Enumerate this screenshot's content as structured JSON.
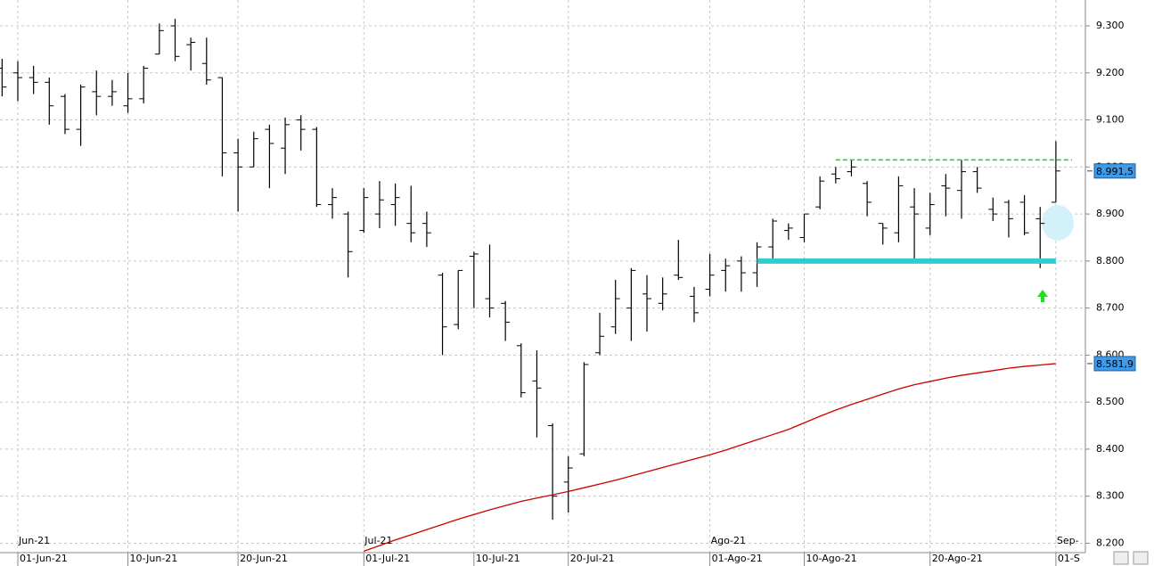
{
  "chart_data": {
    "type": "ohlc",
    "categories": [
      null,
      "01-Jun-21",
      null,
      null,
      null,
      null,
      null,
      null,
      "10-Jun-21",
      null,
      null,
      null,
      null,
      null,
      null,
      "20-Jun-21",
      null,
      null,
      null,
      null,
      null,
      null,
      null,
      "01-Jul-21",
      null,
      null,
      null,
      null,
      null,
      null,
      "10-Jul-21",
      null,
      null,
      null,
      null,
      null,
      "20-Jul-21",
      null,
      null,
      null,
      null,
      null,
      null,
      null,
      null,
      "01-Ago-21",
      null,
      null,
      null,
      null,
      null,
      "10-Ago-21",
      null,
      null,
      null,
      null,
      null,
      null,
      null,
      "20-Ago-21",
      null,
      null,
      null,
      null,
      null,
      null,
      null,
      "01-S"
    ],
    "month_labels": [
      null,
      "Jun-21",
      null,
      null,
      null,
      null,
      null,
      null,
      null,
      null,
      null,
      null,
      null,
      null,
      null,
      null,
      null,
      null,
      null,
      null,
      null,
      null,
      null,
      "Jul-21",
      null,
      null,
      null,
      null,
      null,
      null,
      null,
      null,
      null,
      null,
      null,
      null,
      null,
      null,
      null,
      null,
      null,
      null,
      null,
      null,
      null,
      "Ago-21",
      null,
      null,
      null,
      null,
      null,
      null,
      null,
      null,
      null,
      null,
      null,
      null,
      null,
      null,
      null,
      null,
      null,
      null,
      null,
      null,
      null,
      "Sep-"
    ],
    "open": [
      9210,
      9200,
      9190,
      9180,
      9150,
      9080,
      9160,
      9150,
      9130,
      9145,
      9240,
      9300,
      9260,
      9220,
      9190,
      9030,
      9000,
      9080,
      9040,
      9100,
      9080,
      8920,
      8900,
      8865,
      8900,
      8920,
      8880,
      8880,
      8770,
      8665,
      8810,
      8720,
      8710,
      8620,
      8545,
      8450,
      8330,
      8390,
      8605,
      8660,
      8700,
      8730,
      8710,
      8770,
      8725,
      8740,
      8780,
      8800,
      8775,
      8830,
      8865,
      8850,
      8915,
      8985,
      8990,
      8965,
      8880,
      8860,
      8915,
      8870,
      8960,
      8950,
      8990,
      8910,
      8925,
      8925,
      8890,
      8925
    ],
    "high": [
      9230,
      9225,
      9215,
      9190,
      9155,
      9175,
      9205,
      9185,
      9200,
      9215,
      9305,
      9315,
      9275,
      9275,
      9190,
      9060,
      9075,
      9090,
      9105,
      9110,
      9085,
      8955,
      8905,
      8955,
      8970,
      8965,
      8960,
      8905,
      8775,
      8780,
      8820,
      8835,
      8715,
      8625,
      8610,
      8455,
      8385,
      8585,
      8690,
      8760,
      8785,
      8770,
      8765,
      8845,
      8745,
      8815,
      8805,
      8810,
      8840,
      8890,
      8880,
      8900,
      8980,
      9000,
      9015,
      8970,
      8880,
      8980,
      8955,
      8945,
      8985,
      9015,
      9000,
      8935,
      8930,
      8940,
      8915,
      9055
    ],
    "low": [
      9150,
      9140,
      9155,
      9090,
      9070,
      9045,
      9110,
      9130,
      9115,
      9135,
      9240,
      9225,
      9205,
      9175,
      8980,
      8905,
      9000,
      8955,
      8985,
      9035,
      8915,
      8890,
      8765,
      8860,
      8870,
      8875,
      8840,
      8830,
      8600,
      8655,
      8700,
      8680,
      8630,
      8510,
      8425,
      8250,
      8265,
      8385,
      8600,
      8645,
      8630,
      8650,
      8695,
      8760,
      8670,
      8725,
      8735,
      8735,
      8745,
      8800,
      8845,
      8840,
      8910,
      8965,
      8980,
      8895,
      8835,
      8840,
      8805,
      8855,
      8895,
      8890,
      8945,
      8885,
      8850,
      8855,
      8785,
      8925
    ],
    "close": [
      9170,
      9190,
      9180,
      9130,
      9080,
      9170,
      9150,
      9160,
      9145,
      9210,
      9290,
      9235,
      9265,
      9185,
      9030,
      9000,
      9060,
      9050,
      9090,
      9080,
      8920,
      8935,
      8820,
      8935,
      8930,
      8935,
      8860,
      8860,
      8660,
      8780,
      8815,
      8700,
      8670,
      8520,
      8530,
      8300,
      8360,
      8580,
      8640,
      8720,
      8780,
      8720,
      8730,
      8765,
      8690,
      8770,
      8790,
      8775,
      8830,
      8885,
      8870,
      8900,
      8970,
      8975,
      9000,
      8925,
      8870,
      8960,
      8900,
      8920,
      8955,
      8990,
      8955,
      8900,
      8890,
      8860,
      8880,
      8991.5
    ],
    "close_label": "8.991,5",
    "bar_color": "#000000",
    "moving_average": {
      "color": "#cc0000",
      "value_label": "8.581,9",
      "values": [
        null,
        null,
        null,
        null,
        null,
        null,
        null,
        null,
        null,
        null,
        null,
        null,
        null,
        null,
        null,
        null,
        null,
        null,
        null,
        null,
        null,
        null,
        null,
        8183,
        8195,
        8207,
        8218,
        8229,
        8240,
        8251,
        8261,
        8271,
        8280,
        8289,
        8296,
        8303,
        8310,
        8318,
        8326,
        8334,
        8343,
        8352,
        8361,
        8370,
        8379,
        8388,
        8398,
        8409,
        8420,
        8431,
        8442,
        8456,
        8470,
        8483,
        8495,
        8506,
        8517,
        8528,
        8537,
        8544,
        8551,
        8557,
        8562,
        8567,
        8572,
        8576,
        8579,
        8581.9
      ]
    },
    "resistance": {
      "value": 9015,
      "color": "#22cc22"
    },
    "support": {
      "value": 8800,
      "color": "#33cccc"
    },
    "ylim": [
      8180,
      9355
    ],
    "yticks": [
      {
        "value": 8200,
        "label": "8.200"
      },
      {
        "value": 8300,
        "label": "8.300"
      },
      {
        "value": 8400,
        "label": "8.400"
      },
      {
        "value": 8500,
        "label": "8.500"
      },
      {
        "value": 8600,
        "label": "8.600"
      },
      {
        "value": 8700,
        "label": "8.700"
      },
      {
        "value": 8800,
        "label": "8.800"
      },
      {
        "value": 8900,
        "label": "8.900"
      },
      {
        "value": 9000,
        "label": "9.000"
      },
      {
        "value": 9100,
        "label": "9.100"
      },
      {
        "value": 9200,
        "label": "9.200"
      },
      {
        "value": 9300,
        "label": "9.300"
      }
    ],
    "grid": true
  }
}
